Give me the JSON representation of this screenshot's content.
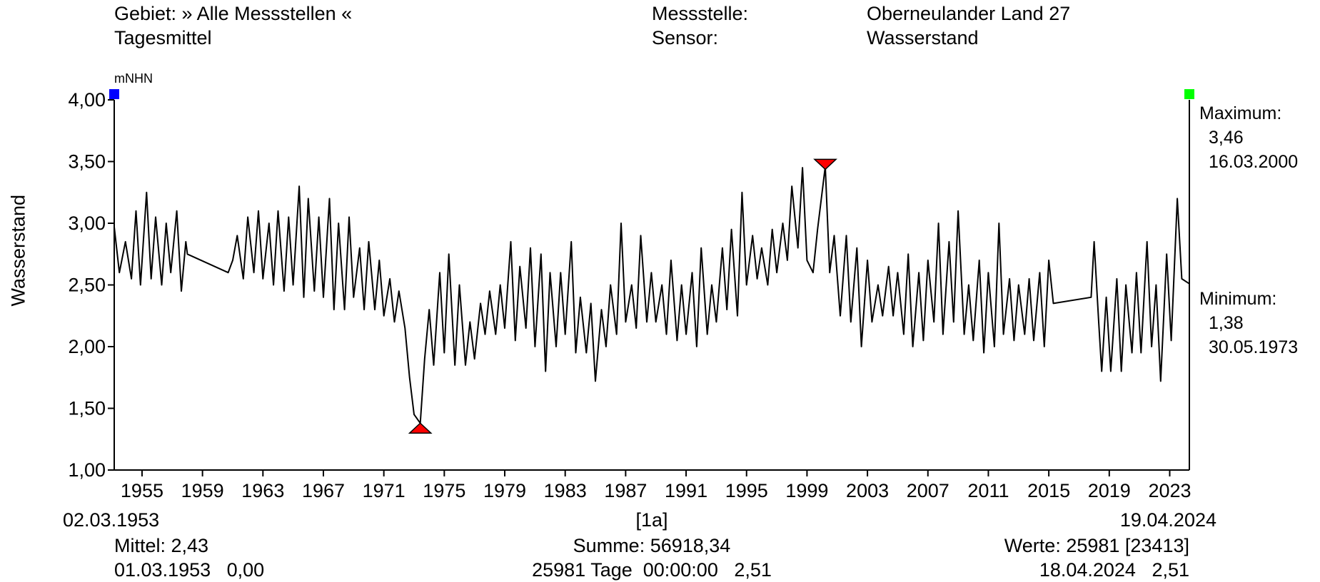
{
  "header": {
    "gebiet": "Gebiet: » Alle Messstellen «",
    "aggregation": "Tagesmittel",
    "messstelle_label": "Messstelle:",
    "messstelle_value": "Oberneulander Land 27",
    "sensor_label": "Sensor:",
    "sensor_value": "Wasserstand"
  },
  "chart_data": {
    "type": "line",
    "ylabel": "Wasserstand",
    "yunit": "mNHN",
    "ylim": [
      1.0,
      4.0
    ],
    "xlim": [
      1953.16,
      2024.3
    ],
    "yticks": [
      {
        "v": 1.0,
        "label": "1,00"
      },
      {
        "v": 1.5,
        "label": "1,50"
      },
      {
        "v": 2.0,
        "label": "2,00"
      },
      {
        "v": 2.5,
        "label": "2,50"
      },
      {
        "v": 3.0,
        "label": "3,00"
      },
      {
        "v": 3.5,
        "label": "3,50"
      },
      {
        "v": 4.0,
        "label": "4,00"
      }
    ],
    "xticks": [
      {
        "v": 1955,
        "label": "1955"
      },
      {
        "v": 1959,
        "label": "1959"
      },
      {
        "v": 1963,
        "label": "1963"
      },
      {
        "v": 1967,
        "label": "1967"
      },
      {
        "v": 1971,
        "label": "1971"
      },
      {
        "v": 1975,
        "label": "1975"
      },
      {
        "v": 1979,
        "label": "1979"
      },
      {
        "v": 1983,
        "label": "1983"
      },
      {
        "v": 1987,
        "label": "1987"
      },
      {
        "v": 1991,
        "label": "1991"
      },
      {
        "v": 1995,
        "label": "1995"
      },
      {
        "v": 1999,
        "label": "1999"
      },
      {
        "v": 2003,
        "label": "2003"
      },
      {
        "v": 2007,
        "label": "2007"
      },
      {
        "v": 2011,
        "label": "2011"
      },
      {
        "v": 2015,
        "label": "2015"
      },
      {
        "v": 2019,
        "label": "2019"
      },
      {
        "v": 2023,
        "label": "2023"
      }
    ],
    "start_date": "02.03.1953",
    "end_date": "19.04.2024",
    "interval_label": "[1a]",
    "grid": false,
    "series": [
      {
        "values": [
          [
            1953.16,
            2.97
          ],
          [
            1953.5,
            2.6
          ],
          [
            1953.9,
            2.85
          ],
          [
            1954.3,
            2.55
          ],
          [
            1954.6,
            3.1
          ],
          [
            1954.9,
            2.5
          ],
          [
            1955.3,
            3.25
          ],
          [
            1955.6,
            2.55
          ],
          [
            1955.9,
            3.05
          ],
          [
            1956.3,
            2.5
          ],
          [
            1956.6,
            3.0
          ],
          [
            1956.9,
            2.6
          ],
          [
            1957.3,
            3.1
          ],
          [
            1957.6,
            2.45
          ],
          [
            1957.9,
            2.85
          ],
          [
            1958.0,
            2.75
          ],
          [
            1960.7,
            2.6
          ],
          [
            1961.0,
            2.7
          ],
          [
            1961.3,
            2.9
          ],
          [
            1961.7,
            2.55
          ],
          [
            1962.0,
            3.05
          ],
          [
            1962.4,
            2.6
          ],
          [
            1962.7,
            3.1
          ],
          [
            1963.0,
            2.55
          ],
          [
            1963.4,
            3.0
          ],
          [
            1963.7,
            2.5
          ],
          [
            1964.0,
            3.1
          ],
          [
            1964.4,
            2.45
          ],
          [
            1964.7,
            3.05
          ],
          [
            1965.0,
            2.5
          ],
          [
            1965.4,
            3.3
          ],
          [
            1965.7,
            2.4
          ],
          [
            1966.0,
            3.2
          ],
          [
            1966.4,
            2.45
          ],
          [
            1966.7,
            3.05
          ],
          [
            1967.0,
            2.4
          ],
          [
            1967.4,
            3.2
          ],
          [
            1967.7,
            2.3
          ],
          [
            1968.0,
            3.0
          ],
          [
            1968.4,
            2.3
          ],
          [
            1968.7,
            3.05
          ],
          [
            1969.0,
            2.4
          ],
          [
            1969.4,
            2.8
          ],
          [
            1969.7,
            2.3
          ],
          [
            1970.0,
            2.85
          ],
          [
            1970.4,
            2.3
          ],
          [
            1970.7,
            2.7
          ],
          [
            1971.0,
            2.25
          ],
          [
            1971.4,
            2.55
          ],
          [
            1971.7,
            2.2
          ],
          [
            1972.0,
            2.45
          ],
          [
            1972.4,
            2.15
          ],
          [
            1972.7,
            1.75
          ],
          [
            1973.0,
            1.45
          ],
          [
            1973.41,
            1.38
          ],
          [
            1973.7,
            1.9
          ],
          [
            1974.0,
            2.3
          ],
          [
            1974.3,
            1.85
          ],
          [
            1974.7,
            2.6
          ],
          [
            1975.0,
            1.95
          ],
          [
            1975.3,
            2.75
          ],
          [
            1975.7,
            1.85
          ],
          [
            1976.0,
            2.5
          ],
          [
            1976.4,
            1.85
          ],
          [
            1976.7,
            2.2
          ],
          [
            1977.0,
            1.9
          ],
          [
            1977.4,
            2.35
          ],
          [
            1977.7,
            2.1
          ],
          [
            1978.0,
            2.45
          ],
          [
            1978.4,
            2.1
          ],
          [
            1978.7,
            2.5
          ],
          [
            1979.0,
            2.15
          ],
          [
            1979.4,
            2.85
          ],
          [
            1979.7,
            2.05
          ],
          [
            1980.0,
            2.65
          ],
          [
            1980.4,
            2.15
          ],
          [
            1980.7,
            2.8
          ],
          [
            1981.0,
            2.0
          ],
          [
            1981.4,
            2.75
          ],
          [
            1981.7,
            1.8
          ],
          [
            1982.0,
            2.6
          ],
          [
            1982.4,
            2.0
          ],
          [
            1982.7,
            2.6
          ],
          [
            1983.0,
            2.1
          ],
          [
            1983.4,
            2.85
          ],
          [
            1983.7,
            1.95
          ],
          [
            1984.0,
            2.4
          ],
          [
            1984.4,
            1.95
          ],
          [
            1984.7,
            2.35
          ],
          [
            1985.0,
            1.72
          ],
          [
            1985.4,
            2.3
          ],
          [
            1985.7,
            2.0
          ],
          [
            1986.0,
            2.5
          ],
          [
            1986.4,
            2.1
          ],
          [
            1986.7,
            3.0
          ],
          [
            1987.0,
            2.2
          ],
          [
            1987.4,
            2.5
          ],
          [
            1987.7,
            2.15
          ],
          [
            1988.0,
            2.9
          ],
          [
            1988.4,
            2.2
          ],
          [
            1988.7,
            2.6
          ],
          [
            1989.0,
            2.2
          ],
          [
            1989.4,
            2.5
          ],
          [
            1989.7,
            2.1
          ],
          [
            1990.0,
            2.7
          ],
          [
            1990.4,
            2.05
          ],
          [
            1990.7,
            2.5
          ],
          [
            1991.0,
            2.1
          ],
          [
            1991.4,
            2.6
          ],
          [
            1991.7,
            2.0
          ],
          [
            1992.0,
            2.8
          ],
          [
            1992.4,
            2.1
          ],
          [
            1992.7,
            2.5
          ],
          [
            1993.0,
            2.2
          ],
          [
            1993.4,
            2.8
          ],
          [
            1993.7,
            2.3
          ],
          [
            1994.0,
            2.95
          ],
          [
            1994.4,
            2.25
          ],
          [
            1994.7,
            3.25
          ],
          [
            1995.0,
            2.5
          ],
          [
            1995.4,
            2.9
          ],
          [
            1995.7,
            2.55
          ],
          [
            1996.0,
            2.8
          ],
          [
            1996.4,
            2.5
          ],
          [
            1996.7,
            2.95
          ],
          [
            1997.0,
            2.6
          ],
          [
            1997.4,
            3.0
          ],
          [
            1997.7,
            2.7
          ],
          [
            1998.0,
            3.3
          ],
          [
            1998.4,
            2.8
          ],
          [
            1998.7,
            3.45
          ],
          [
            1999.0,
            2.7
          ],
          [
            1999.4,
            2.6
          ],
          [
            1999.7,
            2.95
          ],
          [
            2000.21,
            3.46
          ],
          [
            2000.5,
            2.6
          ],
          [
            2000.8,
            2.9
          ],
          [
            2001.2,
            2.25
          ],
          [
            2001.6,
            2.9
          ],
          [
            2001.9,
            2.2
          ],
          [
            2002.3,
            2.8
          ],
          [
            2002.6,
            2.0
          ],
          [
            2003.0,
            2.7
          ],
          [
            2003.3,
            2.2
          ],
          [
            2003.7,
            2.5
          ],
          [
            2004.0,
            2.25
          ],
          [
            2004.4,
            2.65
          ],
          [
            2004.7,
            2.25
          ],
          [
            2005.0,
            2.6
          ],
          [
            2005.4,
            2.1
          ],
          [
            2005.7,
            2.75
          ],
          [
            2006.0,
            2.0
          ],
          [
            2006.4,
            2.6
          ],
          [
            2006.7,
            2.05
          ],
          [
            2007.0,
            2.7
          ],
          [
            2007.4,
            2.2
          ],
          [
            2007.7,
            3.0
          ],
          [
            2008.0,
            2.1
          ],
          [
            2008.4,
            2.85
          ],
          [
            2008.7,
            2.2
          ],
          [
            2009.0,
            3.1
          ],
          [
            2009.4,
            2.1
          ],
          [
            2009.7,
            2.5
          ],
          [
            2010.0,
            2.05
          ],
          [
            2010.4,
            2.7
          ],
          [
            2010.7,
            1.95
          ],
          [
            2011.0,
            2.6
          ],
          [
            2011.4,
            2.0
          ],
          [
            2011.7,
            3.0
          ],
          [
            2012.0,
            2.1
          ],
          [
            2012.4,
            2.55
          ],
          [
            2012.7,
            2.05
          ],
          [
            2013.0,
            2.5
          ],
          [
            2013.4,
            2.1
          ],
          [
            2013.7,
            2.55
          ],
          [
            2014.0,
            2.05
          ],
          [
            2014.4,
            2.6
          ],
          [
            2014.7,
            2.0
          ],
          [
            2015.0,
            2.7
          ],
          [
            2015.3,
            2.35
          ],
          [
            2017.8,
            2.4
          ],
          [
            2018.0,
            2.85
          ],
          [
            2018.3,
            2.2
          ],
          [
            2018.5,
            1.8
          ],
          [
            2018.8,
            2.4
          ],
          [
            2019.1,
            1.8
          ],
          [
            2019.5,
            2.55
          ],
          [
            2019.8,
            1.8
          ],
          [
            2020.1,
            2.5
          ],
          [
            2020.5,
            1.95
          ],
          [
            2020.8,
            2.6
          ],
          [
            2021.1,
            1.95
          ],
          [
            2021.5,
            2.85
          ],
          [
            2021.8,
            2.0
          ],
          [
            2022.1,
            2.5
          ],
          [
            2022.4,
            1.72
          ],
          [
            2022.8,
            2.75
          ],
          [
            2023.1,
            2.05
          ],
          [
            2023.5,
            3.2
          ],
          [
            2023.8,
            2.55
          ],
          [
            2024.3,
            2.51
          ]
        ]
      }
    ],
    "annotations": {
      "maximum_label": "Maximum:",
      "maximum_value": "3,46",
      "maximum_date": "16.03.2000",
      "maximum_point": [
        2000.21,
        3.46
      ],
      "minimum_label": "Minimum:",
      "minimum_value": "1,38",
      "minimum_date": "30.05.1973",
      "minimum_point": [
        1973.41,
        1.38
      ],
      "start_marker_color": "#0000ff",
      "end_marker_color": "#00ff00",
      "extreme_marker_color": "#ff0000"
    }
  },
  "footer": {
    "mittel": "Mittel: 2,43",
    "mittel_detail": "01.03.1953   0,00",
    "summe": "Summe: 56918,34",
    "summe_detail": "25981 Tage  00:00:00   2,51",
    "werte": "Werte: 25981 [23413]",
    "werte_detail": "18.04.2024   2,51"
  }
}
